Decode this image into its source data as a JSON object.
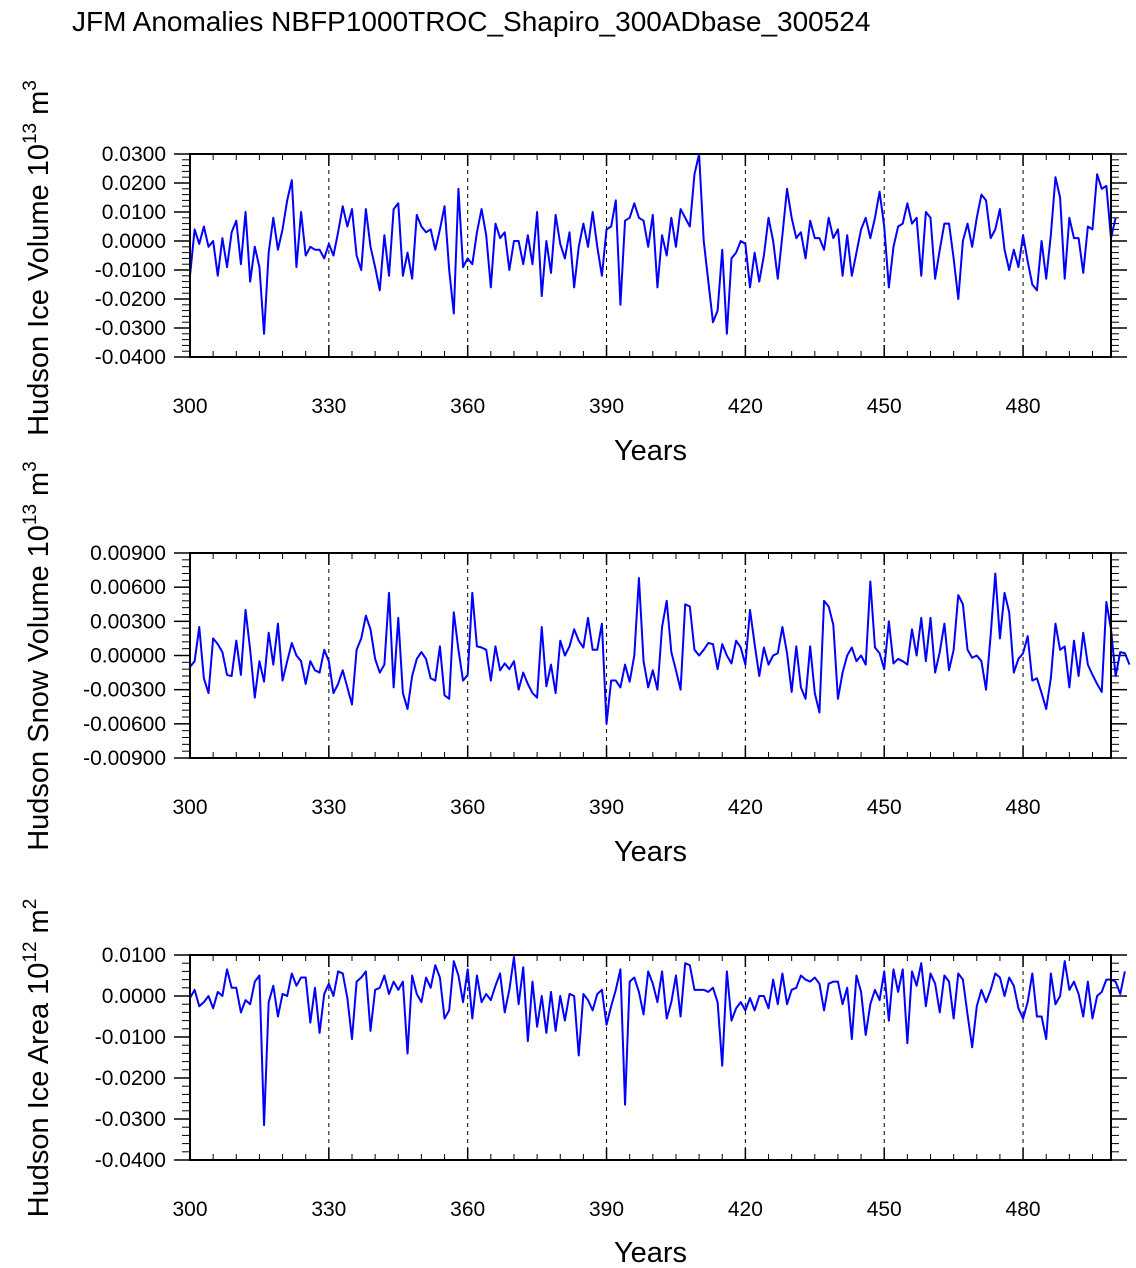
{
  "title": "JFM Anomalies NBFP1000TROC_Shapiro_300ADbase_300524",
  "colors": {
    "series": "#0000ff",
    "axes": "#000000",
    "gridline": "#000000"
  },
  "chart_data": [
    {
      "type": "line",
      "ylabel_main": "Hudson Ice Volume 10",
      "ylabel_exp": "13",
      "ylabel_unit": "m",
      "ylabel_unit_exp": "3",
      "xlabel": "Years",
      "xlim": [
        300,
        499
      ],
      "ylim": [
        -0.04,
        0.03
      ],
      "xticks": [
        300,
        330,
        360,
        390,
        420,
        450,
        480
      ],
      "xtick_labels": [
        "300",
        "330",
        "360",
        "390",
        "420",
        "450",
        "480"
      ],
      "yticks": [
        0.03,
        0.02,
        0.01,
        0.0,
        -0.01,
        -0.02,
        -0.03,
        -0.04
      ],
      "ytick_labels": [
        "0.0300",
        "0.0200",
        "0.0100",
        "0.0000",
        "-0.0100",
        "-0.0200",
        "-0.0300",
        "-0.0400"
      ],
      "vlines": [
        330,
        360,
        390,
        420,
        450,
        480
      ],
      "series": [
        {
          "name": "Hudson Ice Volume",
          "x_start": 300,
          "values": [
            -0.012,
            0.004,
            -0.001,
            0.005,
            -0.002,
            0.0,
            -0.012,
            0.001,
            -0.009,
            0.003,
            0.007,
            -0.008,
            0.01,
            -0.014,
            -0.002,
            -0.009,
            -0.032,
            -0.004,
            0.008,
            -0.003,
            0.004,
            0.014,
            0.021,
            -0.009,
            0.01,
            -0.005,
            -0.002,
            -0.003,
            -0.003,
            -0.006,
            -0.001,
            -0.005,
            0.003,
            0.012,
            0.005,
            0.011,
            -0.005,
            -0.01,
            0.011,
            -0.002,
            -0.009,
            -0.017,
            0.002,
            -0.012,
            0.011,
            0.013,
            -0.012,
            -0.004,
            -0.013,
            0.009,
            0.005,
            0.003,
            0.004,
            -0.003,
            0.004,
            0.012,
            -0.01,
            -0.025,
            0.018,
            -0.009,
            -0.006,
            -0.008,
            0.003,
            0.011,
            0.002,
            -0.016,
            0.006,
            0.001,
            0.003,
            -0.01,
            0.0,
            0.0,
            -0.008,
            0.002,
            -0.008,
            0.01,
            -0.019,
            0.0,
            -0.011,
            0.009,
            -0.001,
            -0.006,
            0.003,
            -0.016,
            -0.002,
            0.006,
            -0.002,
            0.01,
            -0.002,
            -0.012,
            0.004,
            0.005,
            0.014,
            -0.022,
            0.007,
            0.008,
            0.013,
            0.008,
            0.007,
            -0.002,
            0.009,
            -0.016,
            0.002,
            -0.005,
            0.008,
            -0.002,
            0.011,
            0.008,
            0.005,
            0.023,
            0.03,
            0.0,
            -0.014,
            -0.028,
            -0.024,
            -0.003,
            -0.032,
            -0.006,
            -0.004,
            0.0,
            -0.001,
            -0.016,
            -0.004,
            -0.014,
            -0.005,
            0.008,
            0.0,
            -0.013,
            0.002,
            0.018,
            0.008,
            0.001,
            0.003,
            -0.006,
            0.007,
            0.001,
            0.001,
            -0.003,
            0.008,
            0.001,
            0.004,
            -0.012,
            0.002,
            -0.012,
            -0.004,
            0.004,
            0.008,
            0.001,
            0.008,
            0.017,
            0.005,
            -0.016,
            -0.002,
            0.005,
            0.006,
            0.013,
            0.006,
            0.008,
            -0.012,
            0.01,
            0.008,
            -0.013,
            -0.003,
            0.006,
            0.006,
            -0.006,
            -0.02,
            0.0,
            0.006,
            -0.002,
            0.008,
            0.016,
            0.014,
            0.001,
            0.004,
            0.011,
            -0.003,
            -0.01,
            -0.003,
            -0.009,
            0.002,
            -0.007,
            -0.015,
            -0.017,
            0.0,
            -0.013,
            0.002,
            0.022,
            0.015,
            -0.013,
            0.008,
            0.001,
            0.001,
            -0.011,
            0.005,
            0.004,
            0.023,
            0.018,
            0.019,
            0.001,
            0.008
          ]
        }
      ]
    },
    {
      "type": "line",
      "ylabel_main": "Hudson Snow Volume 10",
      "ylabel_exp": "13",
      "ylabel_unit": "m",
      "ylabel_unit_exp": "3",
      "xlabel": "Years",
      "xlim": [
        300,
        499
      ],
      "ylim": [
        -0.009,
        0.009
      ],
      "xticks": [
        300,
        330,
        360,
        390,
        420,
        450,
        480
      ],
      "xtick_labels": [
        "300",
        "330",
        "360",
        "390",
        "420",
        "450",
        "480"
      ],
      "yticks": [
        0.009,
        0.006,
        0.003,
        0.0,
        -0.003,
        -0.006,
        -0.009
      ],
      "ytick_labels": [
        "0.00900",
        "0.00600",
        "0.00300",
        "0.00000",
        "-0.00300",
        "-0.00600",
        "-0.00900"
      ],
      "vlines": [
        330,
        360,
        390,
        420,
        450,
        480
      ],
      "series": [
        {
          "name": "Hudson Snow Volume",
          "x_start": 300,
          "values": [
            -0.001,
            -0.0005,
            0.0025,
            -0.002,
            -0.0033,
            0.0015,
            0.001,
            0.0003,
            -0.0017,
            -0.0018,
            0.0013,
            -0.0017,
            0.004,
            0.0005,
            -0.0037,
            -0.0005,
            -0.0023,
            0.002,
            -0.0008,
            0.0028,
            -0.0022,
            -0.0005,
            0.0011,
            0.0,
            -0.0005,
            -0.0025,
            -0.0005,
            -0.0013,
            -0.0015,
            0.0005,
            -0.0005,
            -0.0033,
            -0.0025,
            -0.0013,
            -0.0028,
            -0.0043,
            0.0005,
            0.0015,
            0.0035,
            0.0023,
            -0.0003,
            -0.0015,
            -0.0008,
            0.0055,
            -0.0028,
            0.0033,
            -0.0033,
            -0.0047,
            -0.0018,
            -0.0003,
            0.0003,
            -0.0003,
            -0.002,
            -0.0022,
            0.0008,
            -0.0035,
            -0.0038,
            0.0038,
            0.0005,
            -0.0022,
            -0.0017,
            0.0055,
            0.0008,
            0.0007,
            0.0005,
            -0.0022,
            0.0008,
            -0.0013,
            -0.0007,
            -0.0012,
            -0.0005,
            -0.003,
            -0.0015,
            -0.0025,
            -0.0033,
            -0.0037,
            0.0025,
            -0.0027,
            -0.0008,
            -0.0033,
            0.0013,
            0.0,
            0.0008,
            0.0023,
            0.0013,
            0.0007,
            0.0033,
            0.0005,
            0.0005,
            0.0028,
            -0.006,
            -0.0022,
            -0.0022,
            -0.0028,
            -0.0008,
            -0.0023,
            0.0,
            0.0068,
            -0.0005,
            -0.0028,
            -0.0013,
            -0.003,
            0.0025,
            0.0048,
            0.0003,
            -0.0013,
            -0.003,
            0.0045,
            0.0043,
            0.0005,
            0.0,
            0.0005,
            0.0011,
            0.001,
            -0.0012,
            0.001,
            0.0,
            -0.0007,
            0.0013,
            0.0007,
            -0.0008,
            0.004,
            0.001,
            -0.0018,
            0.0007,
            -0.0008,
            0.0,
            0.0002,
            0.0025,
            0.0002,
            -0.0032,
            0.0008,
            -0.0028,
            -0.0038,
            0.0008,
            -0.0033,
            -0.005,
            0.0048,
            0.0043,
            0.0027,
            -0.0038,
            -0.0015,
            0.0,
            0.0007,
            -0.0005,
            0.0,
            -0.0008,
            0.0065,
            0.0007,
            0.0002,
            -0.0012,
            0.003,
            -0.0007,
            -0.0003,
            -0.0005,
            -0.0008,
            0.0023,
            0.0,
            0.0033,
            -0.0005,
            0.0033,
            -0.0015,
            0.0003,
            0.0028,
            -0.0013,
            0.0005,
            0.0053,
            0.0045,
            0.0005,
            -0.0002,
            0.0,
            -0.0005,
            -0.003,
            0.0018,
            0.0072,
            0.0015,
            0.0055,
            0.0038,
            -0.0015,
            -0.0003,
            0.0002,
            0.0017,
            -0.0022,
            -0.002,
            -0.0033,
            -0.0047,
            -0.002,
            0.0028,
            0.0005,
            0.0008,
            -0.0028,
            0.0013,
            -0.0018,
            0.002,
            -0.0008,
            -0.0017,
            -0.0025,
            -0.0032,
            0.0047,
            0.0023,
            -0.0018,
            0.0003,
            0.0002,
            -0.0008
          ]
        }
      ]
    },
    {
      "type": "line",
      "ylabel_main": "Hudson Ice Area 10",
      "ylabel_exp": "12",
      "ylabel_unit": "m",
      "ylabel_unit_exp": "2",
      "xlabel": "Years",
      "xlim": [
        300,
        499
      ],
      "ylim": [
        -0.04,
        0.01
      ],
      "xticks": [
        300,
        330,
        360,
        390,
        420,
        450,
        480
      ],
      "xtick_labels": [
        "300",
        "330",
        "360",
        "390",
        "420",
        "450",
        "480"
      ],
      "yticks": [
        0.01,
        0.0,
        -0.01,
        -0.02,
        -0.03,
        -0.04
      ],
      "ytick_labels": [
        "0.0100",
        "0.0000",
        "-0.0100",
        "-0.0200",
        "-0.0300",
        "-0.0400"
      ],
      "vlines": [
        330,
        360,
        390,
        420,
        450,
        480
      ],
      "series": [
        {
          "name": "Hudson Ice Area",
          "x_start": 300,
          "values": [
            -0.0005,
            0.0015,
            -0.0025,
            -0.0015,
            0.0,
            -0.003,
            0.001,
            0.0,
            0.0065,
            0.002,
            0.002,
            -0.004,
            -0.001,
            -0.002,
            0.0035,
            0.005,
            -0.0315,
            -0.0015,
            0.0025,
            -0.005,
            0.0005,
            0.0,
            0.0055,
            0.0025,
            0.0045,
            0.0045,
            -0.0065,
            0.002,
            -0.009,
            0.0005,
            0.003,
            0.0,
            0.006,
            0.0055,
            -0.0005,
            -0.0105,
            0.0035,
            0.0045,
            0.006,
            -0.0085,
            0.0015,
            0.002,
            0.005,
            0.0005,
            0.0035,
            0.0015,
            0.0035,
            -0.014,
            0.005,
            0.0005,
            -0.0015,
            0.0045,
            0.002,
            0.0075,
            0.0045,
            -0.0055,
            -0.0035,
            0.0085,
            0.005,
            -0.0015,
            0.0065,
            -0.0055,
            0.005,
            -0.0015,
            0.0005,
            -0.001,
            0.0025,
            0.0055,
            -0.004,
            0.0015,
            0.0095,
            -0.002,
            0.007,
            -0.011,
            0.0035,
            -0.0075,
            0.0,
            -0.009,
            0.001,
            -0.0085,
            0.0,
            -0.006,
            0.0005,
            0.0,
            -0.0145,
            0.0005,
            -0.001,
            -0.0035,
            0.0005,
            0.0015,
            -0.007,
            -0.0025,
            0.0015,
            0.0065,
            -0.0265,
            0.0035,
            0.0045,
            0.001,
            -0.0045,
            0.006,
            0.003,
            -0.0015,
            0.006,
            -0.0055,
            -0.0015,
            0.005,
            -0.005,
            0.008,
            0.0075,
            0.0015,
            0.0015,
            0.0015,
            0.001,
            0.002,
            -0.0015,
            -0.017,
            0.006,
            -0.006,
            -0.003,
            -0.0015,
            -0.0035,
            -0.0005,
            -0.0035,
            0.0,
            0.0,
            -0.003,
            0.004,
            -0.002,
            0.0055,
            -0.002,
            0.0015,
            0.002,
            0.005,
            0.004,
            0.0035,
            0.0045,
            0.003,
            -0.0035,
            0.003,
            0.0035,
            0.0035,
            -0.002,
            0.002,
            -0.0105,
            0.005,
            0.001,
            -0.0095,
            -0.002,
            0.0015,
            -0.001,
            0.006,
            -0.006,
            0.0065,
            0.001,
            0.0065,
            -0.0115,
            0.006,
            0.0025,
            0.008,
            -0.0025,
            0.0055,
            0.003,
            -0.004,
            0.005,
            0.0035,
            -0.0055,
            0.0055,
            0.004,
            -0.0045,
            -0.0125,
            -0.0025,
            0.0015,
            -0.0015,
            0.0015,
            0.0055,
            0.0045,
            0.0,
            0.0045,
            0.0025,
            -0.003,
            -0.0055,
            -0.0015,
            0.0055,
            -0.005,
            -0.005,
            -0.0105,
            0.0055,
            -0.002,
            0.0,
            0.0085,
            0.0015,
            0.0035,
            0.0005,
            -0.005,
            0.0035,
            -0.0055,
            0.0,
            0.001,
            0.004,
            0.004,
            0.0035,
            0.0005,
            0.006
          ]
        }
      ]
    }
  ]
}
